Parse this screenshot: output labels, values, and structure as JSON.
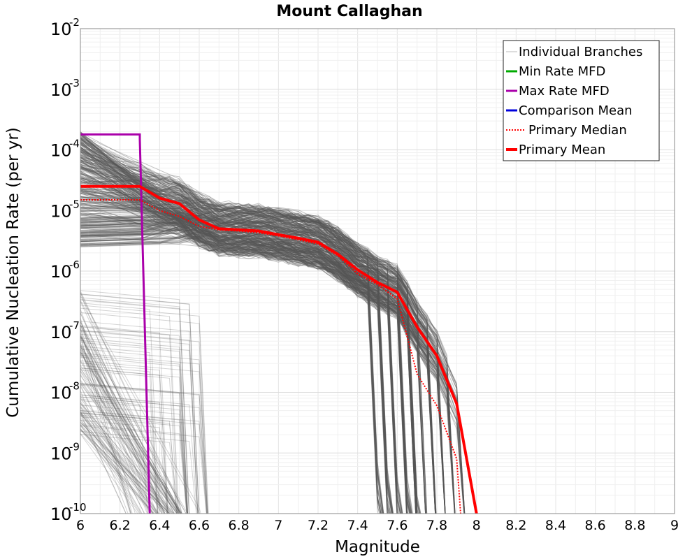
{
  "chart_data": {
    "type": "line",
    "title": "Mount Callaghan",
    "xlabel": "Magnitude",
    "ylabel": "Cumulative Nucleation Rate (per yr)",
    "xlim": [
      6,
      9
    ],
    "ylim": [
      1e-10,
      0.01
    ],
    "yscale": "log",
    "grid": true,
    "legend_position": "top-right",
    "x_ticks": [
      "6",
      "6.2",
      "6.4",
      "6.6",
      "6.8",
      "7",
      "7.2",
      "7.4",
      "7.6",
      "7.8",
      "8",
      "8.2",
      "8.4",
      "8.6",
      "8.8",
      "9"
    ],
    "y_ticks": [
      {
        "base": "10",
        "exp": "-10"
      },
      {
        "base": "10",
        "exp": "-9"
      },
      {
        "base": "10",
        "exp": "-8"
      },
      {
        "base": "10",
        "exp": "-7"
      },
      {
        "base": "10",
        "exp": "-6"
      },
      {
        "base": "10",
        "exp": "-5"
      },
      {
        "base": "10",
        "exp": "-4"
      },
      {
        "base": "10",
        "exp": "-3"
      },
      {
        "base": "10",
        "exp": "-2"
      }
    ],
    "series": [
      {
        "name": "Individual Branches",
        "color": "#555555",
        "style": "thin"
      },
      {
        "name": "Min Rate MFD",
        "color": "#00aa00",
        "style": "solid",
        "x": [],
        "y": []
      },
      {
        "name": "Max Rate MFD",
        "color": "#aa00aa",
        "style": "solid",
        "x": [
          6.0,
          6.3,
          6.3,
          6.35
        ],
        "y": [
          0.00018,
          0.00018,
          0.00015,
          1e-10
        ]
      },
      {
        "name": "Comparison Mean",
        "color": "#0000dd",
        "style": "solid",
        "x": [],
        "y": []
      },
      {
        "name": "Primary Median",
        "color": "#ff0000",
        "style": "dotted",
        "x": [
          6.0,
          6.3,
          6.4,
          6.5,
          6.6,
          6.7,
          6.8,
          6.9,
          7.0,
          7.1,
          7.2,
          7.3,
          7.4,
          7.5,
          7.6,
          7.7,
          7.8,
          7.9,
          7.92
        ],
        "y": [
          1.5e-05,
          1.5e-05,
          1e-05,
          8e-06,
          5.5e-06,
          4.8e-06,
          4.6e-06,
          4.3e-06,
          3.8e-06,
          3.3e-06,
          2.8e-06,
          1.8e-06,
          9e-07,
          6e-07,
          3.5e-07,
          2e-08,
          6e-09,
          8e-10,
          1e-10
        ]
      },
      {
        "name": "Primary Mean",
        "color": "#ff0000",
        "style": "thick",
        "x": [
          6.0,
          6.3,
          6.4,
          6.5,
          6.6,
          6.7,
          6.8,
          6.9,
          7.0,
          7.1,
          7.2,
          7.3,
          7.4,
          7.5,
          7.6,
          7.7,
          7.8,
          7.9,
          8.0
        ],
        "y": [
          2.5e-05,
          2.5e-05,
          1.6e-05,
          1.3e-05,
          7e-06,
          5e-06,
          4.8e-06,
          4.6e-06,
          4e-06,
          3.5e-06,
          3e-06,
          1.9e-06,
          1.05e-06,
          6.5e-07,
          4.5e-07,
          1.2e-07,
          4e-08,
          6.5e-09,
          1e-10
        ]
      }
    ]
  }
}
